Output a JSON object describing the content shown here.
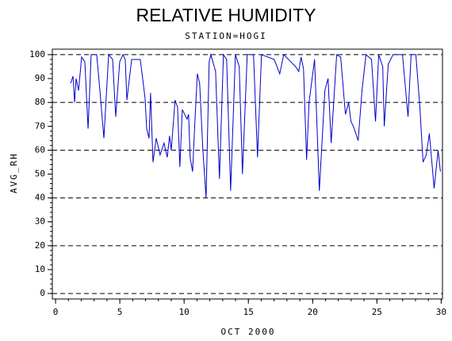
{
  "chart_data": {
    "type": "line",
    "title": "RELATIVE HUMIDITY",
    "subtitle": "STATION=HOGI",
    "x_label": "OCT 2000",
    "y_label": "AVG_RH",
    "xlim": [
      -0.25,
      30.1
    ],
    "ylim": [
      -2.3,
      102.3
    ],
    "xticks": [
      0,
      5,
      10,
      15,
      20,
      25,
      30
    ],
    "yticks": [
      0,
      10,
      20,
      30,
      40,
      50,
      60,
      70,
      80,
      90,
      100
    ],
    "x_minor_ticks": [
      0,
      1,
      2,
      3,
      4,
      5,
      6,
      7,
      8,
      9,
      10,
      11,
      12,
      13,
      14,
      15,
      16,
      17,
      18,
      19,
      20,
      21,
      22,
      23,
      24,
      25,
      26,
      27,
      28,
      29,
      30
    ],
    "y_minor_ticks": [
      0,
      2,
      4,
      6,
      8,
      10,
      12,
      14,
      16,
      18,
      20,
      22,
      24,
      26,
      28,
      30,
      32,
      34,
      36,
      38,
      40,
      42,
      44,
      46,
      48,
      50,
      52,
      54,
      56,
      58,
      60,
      62,
      64,
      66,
      68,
      70,
      72,
      74,
      76,
      78,
      80,
      82,
      84,
      86,
      88,
      90,
      92,
      94,
      96,
      98,
      100
    ],
    "grid_lines": [
      0,
      20,
      40,
      60,
      80,
      100
    ],
    "grid_style": "dashed",
    "series": [
      {
        "name": "AVG_RH",
        "color": "#0000cc",
        "x": [
          1.17,
          1.36,
          1.48,
          1.6,
          1.79,
          2.03,
          2.28,
          2.53,
          2.77,
          3.2,
          3.45,
          3.76,
          4.13,
          4.44,
          4.68,
          4.99,
          5.24,
          5.42,
          5.55,
          5.92,
          6.59,
          6.96,
          7.09,
          7.27,
          7.39,
          7.58,
          7.83,
          8.13,
          8.44,
          8.69,
          8.87,
          9.0,
          9.3,
          9.49,
          9.67,
          9.86,
          10.23,
          10.35,
          10.47,
          10.66,
          10.84,
          11.03,
          11.21,
          11.46,
          11.71,
          11.95,
          12.08,
          12.45,
          12.75,
          13.06,
          13.31,
          13.62,
          13.99,
          14.29,
          14.54,
          14.91,
          15.4,
          15.71,
          16.02,
          17.01,
          17.44,
          17.75,
          18.3,
          18.67,
          18.92,
          19.1,
          19.29,
          19.53,
          19.72,
          20.15,
          20.52,
          20.95,
          21.2,
          21.44,
          21.87,
          22.18,
          22.55,
          22.8,
          22.98,
          23.17,
          23.54,
          23.84,
          24.15,
          24.58,
          24.89,
          25.14,
          25.45,
          25.57,
          25.88,
          26.25,
          26.99,
          27.42,
          27.66,
          28.03,
          28.34,
          28.59,
          28.84,
          29.08,
          29.45,
          29.76,
          29.94
        ],
        "values": [
          88,
          91,
          80,
          90,
          85,
          99,
          97,
          69,
          100,
          100,
          85,
          65,
          100,
          98,
          74,
          97,
          100,
          98,
          81,
          98,
          98,
          82,
          69,
          65,
          84,
          55,
          65,
          58,
          63,
          57,
          66,
          60,
          81,
          78,
          53,
          77,
          73,
          75,
          57,
          51,
          72,
          92,
          88,
          60,
          40,
          97,
          100,
          93,
          48,
          100,
          98,
          43,
          100,
          95,
          50,
          100,
          100,
          57,
          100,
          98,
          92,
          100,
          97,
          95,
          93,
          99,
          94,
          56,
          80,
          98,
          43,
          85,
          90,
          63,
          100,
          99,
          75,
          80,
          72,
          70,
          64,
          85,
          100,
          98,
          72,
          100,
          95,
          70,
          96,
          100,
          100,
          74,
          100,
          100,
          78,
          55,
          58,
          67,
          44,
          60,
          51
        ]
      }
    ]
  }
}
